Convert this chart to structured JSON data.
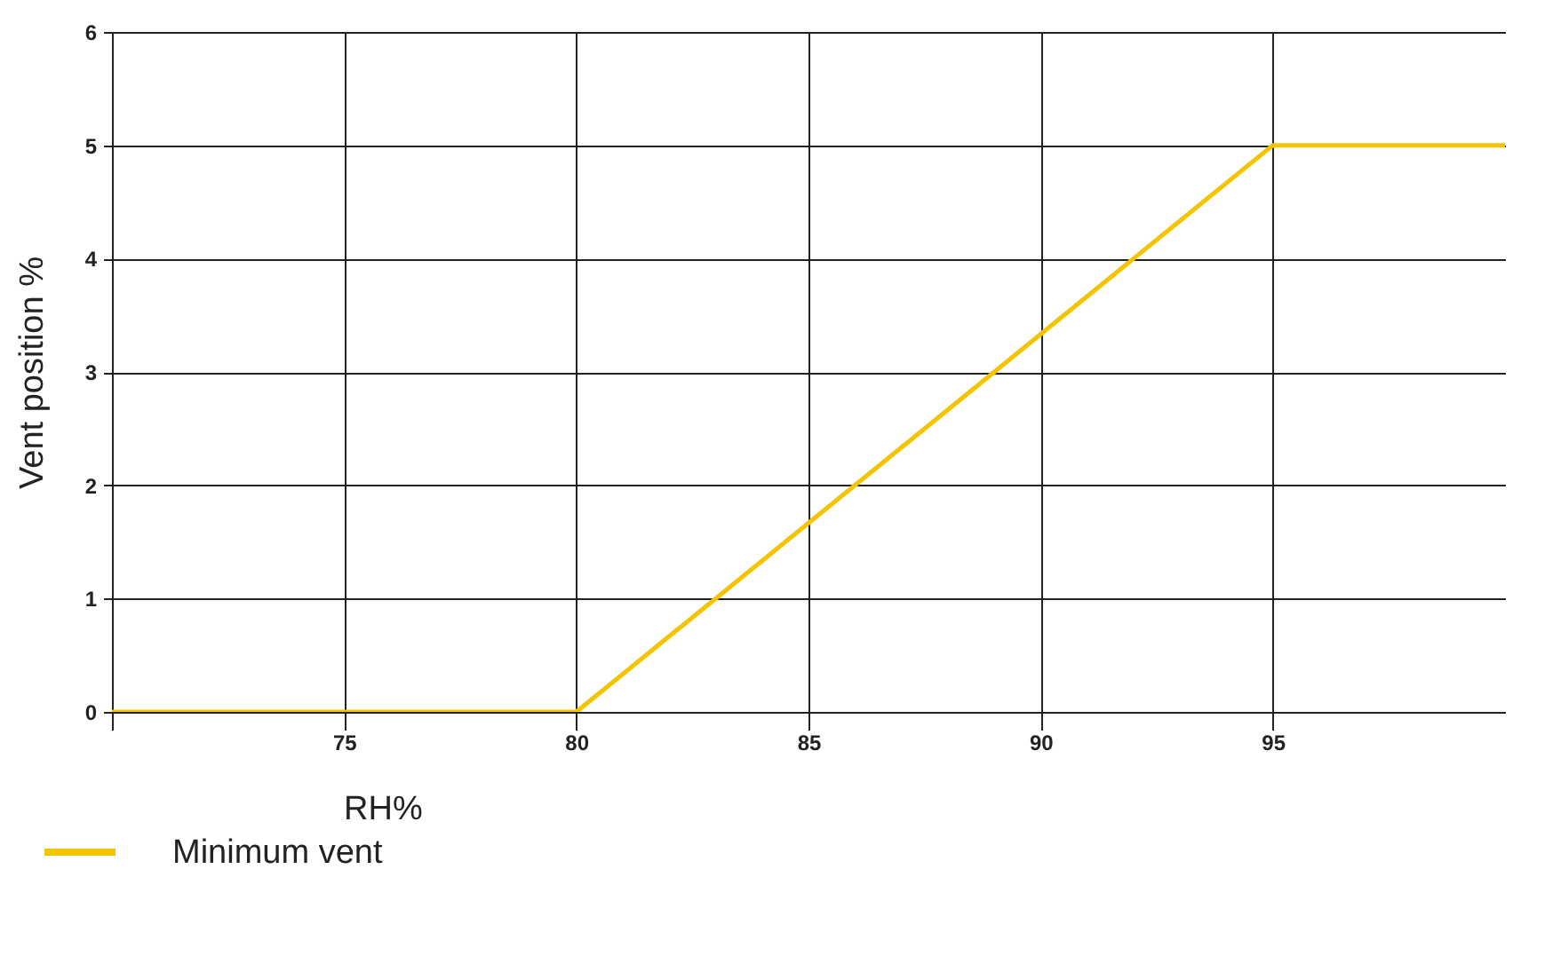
{
  "chart_data": {
    "type": "line",
    "xlabel": "RH%",
    "ylabel": "Vent position %",
    "x": [
      70,
      80,
      95,
      100
    ],
    "series": [
      {
        "name": "Minimum vent",
        "color": "#f5c400",
        "values": [
          0,
          0,
          5,
          5
        ]
      }
    ],
    "xlim": [
      70,
      100
    ],
    "xticks": [
      {
        "value": 70,
        "label": null
      },
      75,
      80,
      85,
      90,
      95
    ],
    "ylim": [
      0,
      6
    ],
    "yticks": [
      0,
      1,
      2,
      3,
      4,
      5,
      6
    ],
    "grid": true,
    "legend": "bottom left",
    "marker": "none",
    "line_style": "solid"
  }
}
